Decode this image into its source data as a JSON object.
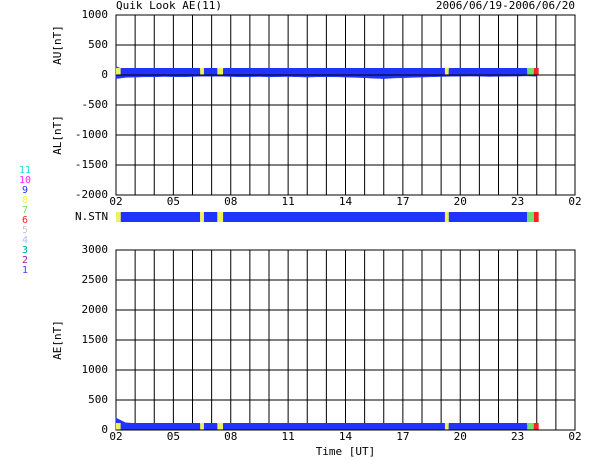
{
  "header": {
    "title": "Quik Look AE(11)",
    "date_range": "2006/06/19-2006/06/20"
  },
  "chart_data": [
    {
      "type": "area",
      "y_labels": [
        "AU[nT]",
        "AL[nT]"
      ],
      "x": [
        2,
        2.5,
        3,
        3.5,
        4,
        4.5,
        5,
        5.5,
        6,
        6.5,
        7,
        7.5,
        8,
        8.5,
        9,
        9.5,
        10,
        10.5,
        11,
        11.5,
        12,
        12.5,
        13,
        13.5,
        14,
        14.5,
        15,
        15.5,
        16,
        16.5,
        17,
        17.5,
        18,
        18.5,
        19,
        19.5,
        20,
        20.5,
        21,
        21.5,
        22,
        22.5,
        23,
        23.5,
        24
      ],
      "series": [
        {
          "name": "AU",
          "color": "#2233ff",
          "values": [
            140,
            80,
            75,
            70,
            72,
            70,
            68,
            65,
            70,
            72,
            75,
            80,
            78,
            70,
            65,
            68,
            60,
            62,
            58,
            55,
            60,
            58,
            55,
            50,
            52,
            55,
            50,
            45,
            40,
            45,
            50,
            55,
            60,
            62,
            65,
            68,
            70,
            72,
            75,
            78,
            75,
            72,
            70,
            68,
            60
          ]
        },
        {
          "name": "AL",
          "color": "#2233ff",
          "values": [
            -60,
            -40,
            -35,
            -30,
            -30,
            -25,
            -28,
            -30,
            -25,
            -20,
            -22,
            -20,
            -25,
            -30,
            -28,
            -25,
            -30,
            -28,
            -25,
            -30,
            -35,
            -30,
            -28,
            -30,
            -35,
            -40,
            -45,
            -55,
            -60,
            -50,
            -45,
            -40,
            -35,
            -30,
            -25,
            -22,
            -20,
            -18,
            -20,
            -25,
            -22,
            -20,
            -18,
            -15,
            -20
          ]
        }
      ],
      "xlim": [
        2,
        26
      ],
      "xticks": [
        {
          "value": 2,
          "label": "02"
        },
        {
          "value": 5,
          "label": "05"
        },
        {
          "value": 8,
          "label": "08"
        },
        11,
        14,
        17,
        {
          "value": 20,
          "label": "20"
        },
        23,
        {
          "value": 26,
          "label": "02"
        }
      ],
      "x_minor_ticks": [
        3,
        4,
        6,
        7,
        9,
        10,
        12,
        13,
        15,
        16,
        18,
        19,
        21,
        22,
        24,
        25
      ],
      "ylim": [
        -2000,
        1000
      ],
      "yticks": [
        1000,
        500,
        0,
        -500,
        -1000,
        -1500,
        -2000
      ],
      "grid": true
    },
    {
      "type": "strip",
      "label": "N.STN",
      "starts": [
        2,
        2.25,
        6.4,
        6.6,
        7.3,
        7.6,
        19.2,
        19.4,
        23.5,
        23.85
      ],
      "ends": [
        2.25,
        6.4,
        6.6,
        7.3,
        7.6,
        19.2,
        19.4,
        23.5,
        23.85,
        24.1
      ],
      "values": [
        8,
        9,
        8,
        9,
        8,
        9,
        8,
        9,
        7,
        6
      ],
      "xlim": [
        2,
        26
      ],
      "legend": {
        "labels": [
          "11",
          "10",
          "9",
          "8",
          "7",
          "6",
          "5",
          "4",
          "3",
          "2",
          "1"
        ],
        "colors": [
          "#20d8e0",
          "#ff20ff",
          "#2233ff",
          "#f0f060",
          "#70e070",
          "#ff2020",
          "#c8c8c8",
          "#a8c0ff",
          "#00a0a0",
          "#a020a0",
          "#4040ff"
        ]
      }
    },
    {
      "type": "area",
      "y_labels": [
        "AE[nT]"
      ],
      "x_label": "Time [UT]",
      "x": [
        2,
        2.5,
        3,
        3.5,
        4,
        4.5,
        5,
        5.5,
        6,
        6.5,
        7,
        7.5,
        8,
        8.5,
        9,
        9.5,
        10,
        10.5,
        11,
        11.5,
        12,
        12.5,
        13,
        13.5,
        14,
        14.5,
        15,
        15.5,
        16,
        16.5,
        17,
        17.5,
        18,
        18.5,
        19,
        19.5,
        20,
        20.5,
        21,
        21.5,
        22,
        22.5,
        23,
        23.5,
        24
      ],
      "series": [
        {
          "name": "AE",
          "color": "#2233ff",
          "values": [
            200,
            120,
            110,
            100,
            102,
            95,
            96,
            95,
            95,
            92,
            97,
            100,
            103,
            100,
            93,
            93,
            90,
            90,
            83,
            85,
            95,
            88,
            83,
            80,
            87,
            95,
            95,
            100,
            100,
            95,
            95,
            95,
            95,
            92,
            90,
            90,
            90,
            90,
            95,
            103,
            97,
            92,
            88,
            83,
            80
          ]
        }
      ],
      "xlim": [
        2,
        26
      ],
      "xticks": [
        {
          "value": 2,
          "label": "02"
        },
        {
          "value": 5,
          "label": "05"
        },
        {
          "value": 8,
          "label": "08"
        },
        11,
        14,
        17,
        {
          "value": 20,
          "label": "20"
        },
        23,
        {
          "value": 26,
          "label": "02"
        }
      ],
      "x_minor_ticks": [
        3,
        4,
        6,
        7,
        9,
        10,
        12,
        13,
        15,
        16,
        18,
        19,
        21,
        22,
        24,
        25
      ],
      "ylim": [
        0,
        3000
      ],
      "yticks": [
        0,
        500,
        1000,
        1500,
        2000,
        2500,
        3000
      ],
      "grid": true
    }
  ]
}
